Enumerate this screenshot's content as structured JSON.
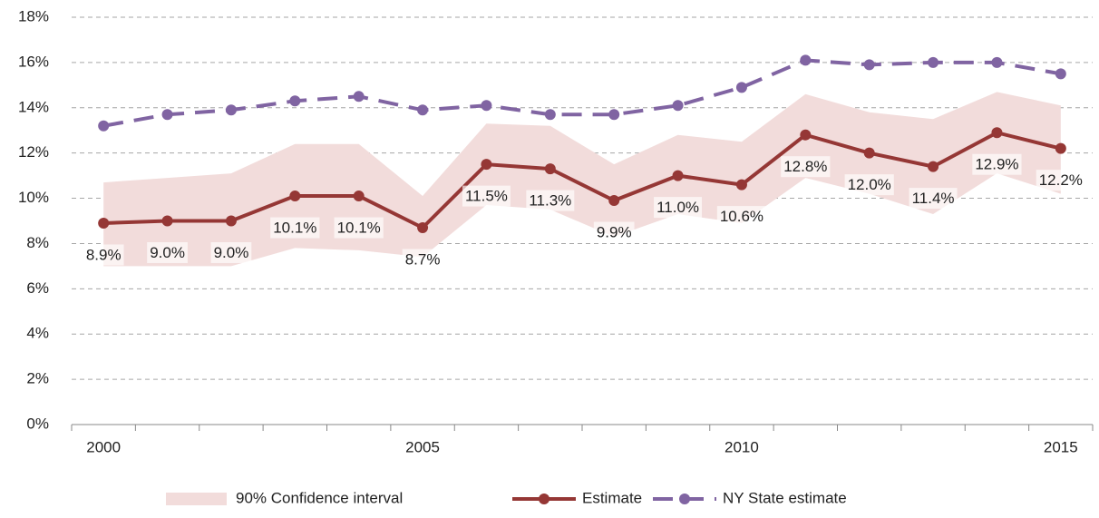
{
  "chart_data": {
    "type": "line",
    "categories": [
      "2000",
      null,
      null,
      null,
      null,
      "2005",
      null,
      null,
      null,
      null,
      "2010",
      null,
      null,
      null,
      null,
      "2015"
    ],
    "ylim": [
      0,
      18
    ],
    "yticks": [
      {
        "value": 0,
        "label": "0%"
      },
      {
        "value": 2,
        "label": "2%"
      },
      {
        "value": 4,
        "label": "4%"
      },
      {
        "value": 6,
        "label": "6%"
      },
      {
        "value": 8,
        "label": "8%"
      },
      {
        "value": 10,
        "label": "10%"
      },
      {
        "value": 12,
        "label": "12%"
      },
      {
        "value": 14,
        "label": "14%"
      },
      {
        "value": 16,
        "label": "16%"
      },
      {
        "value": 18,
        "label": "18%"
      }
    ],
    "grid": true,
    "legend": "bottom",
    "series": [
      {
        "name": "90% Confidence interval",
        "color": "#f2dcdb",
        "kind": "band",
        "upper": [
          10.7,
          10.9,
          11.1,
          12.4,
          12.4,
          10.1,
          13.3,
          13.2,
          11.5,
          12.8,
          12.5,
          14.6,
          13.8,
          13.5,
          14.7,
          14.1
        ],
        "lower": [
          7.0,
          7.0,
          7.0,
          7.8,
          7.7,
          7.4,
          9.7,
          9.5,
          8.3,
          9.3,
          8.9,
          10.9,
          10.2,
          9.3,
          11.1,
          10.2
        ]
      },
      {
        "name": "Estimate",
        "color": "#953735",
        "line_style": "solid",
        "values": [
          8.9,
          9.0,
          9.0,
          10.1,
          10.1,
          8.7,
          11.5,
          11.3,
          9.9,
          11.0,
          10.6,
          12.8,
          12.0,
          11.4,
          12.9,
          12.2
        ],
        "value_labels": [
          "8.9%",
          "9.0%",
          "9.0%",
          "10.1%",
          "10.1%",
          "8.7%",
          "11.5%",
          "11.3%",
          "9.9%",
          "11.0%",
          "10.6%",
          "12.8%",
          "12.0%",
          "11.4%",
          "12.9%",
          "12.2%"
        ]
      },
      {
        "name": "NY State estimate",
        "color": "#8064a2",
        "line_style": "dashed",
        "values": [
          13.2,
          13.7,
          13.9,
          14.3,
          14.5,
          13.9,
          14.1,
          13.7,
          13.7,
          14.1,
          14.9,
          16.1,
          15.9,
          16.0,
          16.0,
          15.5
        ]
      }
    ]
  }
}
